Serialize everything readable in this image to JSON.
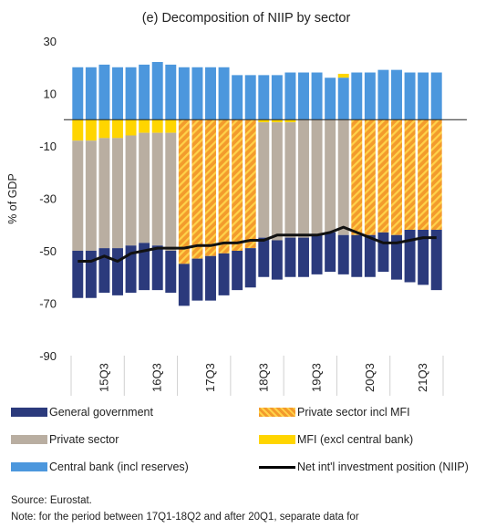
{
  "chart_data": {
    "type": "bar",
    "title": "(e) Decomposition of NIIP by sector",
    "ylabel": "% of GDP",
    "xlabel": "",
    "ylim": [
      -90,
      30
    ],
    "yticks": [
      30,
      10,
      -10,
      -30,
      -50,
      -70,
      -90
    ],
    "grid": false,
    "categories": [
      "15Q1",
      "15Q2",
      "15Q3",
      "15Q4",
      "16Q1",
      "16Q2",
      "16Q3",
      "16Q4",
      "17Q1",
      "17Q2",
      "17Q3",
      "17Q4",
      "18Q1",
      "18Q2",
      "18Q3",
      "18Q4",
      "19Q1",
      "19Q2",
      "19Q3",
      "19Q4",
      "20Q1",
      "20Q2",
      "20Q3",
      "20Q4",
      "21Q1",
      "21Q2",
      "21Q3",
      "21Q4"
    ],
    "x_tick_labels": [
      "15Q3",
      "16Q3",
      "17Q3",
      "18Q3",
      "19Q3",
      "20Q3",
      "21Q3"
    ],
    "series": [
      {
        "name": "General government",
        "kind": "bar",
        "color": "#2b3a7c",
        "values": [
          -18,
          -18,
          -17,
          -18,
          -18,
          -18,
          -17,
          -16,
          -16,
          -16,
          -17,
          -16,
          -15,
          -15,
          -15,
          -15,
          -15,
          -15,
          -15,
          -15,
          -15,
          -16,
          -16,
          -15,
          -17,
          -20,
          -21,
          -23
        ]
      },
      {
        "name": "Private sector",
        "kind": "bar",
        "color": "#b9aea1",
        "values": [
          -50,
          -50,
          -49,
          -49,
          -48,
          -47,
          -48,
          -50,
          null,
          null,
          null,
          null,
          null,
          null,
          -45,
          -46,
          -45,
          -45,
          -44,
          -43,
          -44,
          null,
          null,
          null,
          null,
          null,
          null,
          null
        ]
      },
      {
        "name": "Private sector incl MFI",
        "kind": "bar",
        "color": "#f39b2c",
        "pattern": "hatched",
        "values": [
          null,
          null,
          null,
          null,
          null,
          null,
          null,
          null,
          -55,
          -53,
          -52,
          -51,
          -50,
          -49,
          null,
          null,
          null,
          null,
          null,
          null,
          null,
          -44,
          -44,
          -43,
          -44,
          -42,
          -42,
          -42
        ]
      },
      {
        "name": "MFI (excl central bank)",
        "kind": "bar",
        "color": "#ffd500",
        "values": [
          -8,
          -8,
          -7,
          -7,
          -6,
          -5,
          -5,
          -5,
          null,
          null,
          null,
          null,
          null,
          null,
          -1,
          -1,
          -1,
          0,
          0,
          0,
          1.5,
          null,
          null,
          null,
          null,
          null,
          null,
          null
        ]
      },
      {
        "name": "Central bank (incl reserves)",
        "kind": "bar",
        "color": "#4c97dd",
        "values": [
          20,
          20,
          21,
          20,
          20,
          21,
          22,
          21,
          20,
          20,
          20,
          20,
          17,
          17,
          17,
          17,
          18,
          18,
          18,
          16,
          16,
          18,
          18,
          19,
          19,
          18,
          18,
          18
        ]
      },
      {
        "name": "Net int'l investment position (NIIP)",
        "kind": "line",
        "color": "#000000",
        "values": [
          -54,
          -54,
          -52,
          -54,
          -51,
          -50,
          -49,
          -49,
          -49,
          -48,
          -48,
          -47,
          -47,
          -46,
          -46,
          -44,
          -44,
          -44,
          -44,
          -43,
          -41,
          -43,
          -45,
          -47,
          -47,
          -46,
          -45,
          -45
        ]
      }
    ]
  },
  "legend": [
    {
      "label": "General government"
    },
    {
      "label": "Private sector incl MFI"
    },
    {
      "label": "Private sector"
    },
    {
      "label": "MFI (excl central bank)"
    },
    {
      "label": "Central bank (incl reserves)"
    },
    {
      "label": "Net int'l investment position (NIIP)"
    }
  ],
  "notes": {
    "source": "Source: Eurostat.",
    "note": "Note: for the period between 17Q1-18Q2 and after 20Q1, separate data for"
  }
}
